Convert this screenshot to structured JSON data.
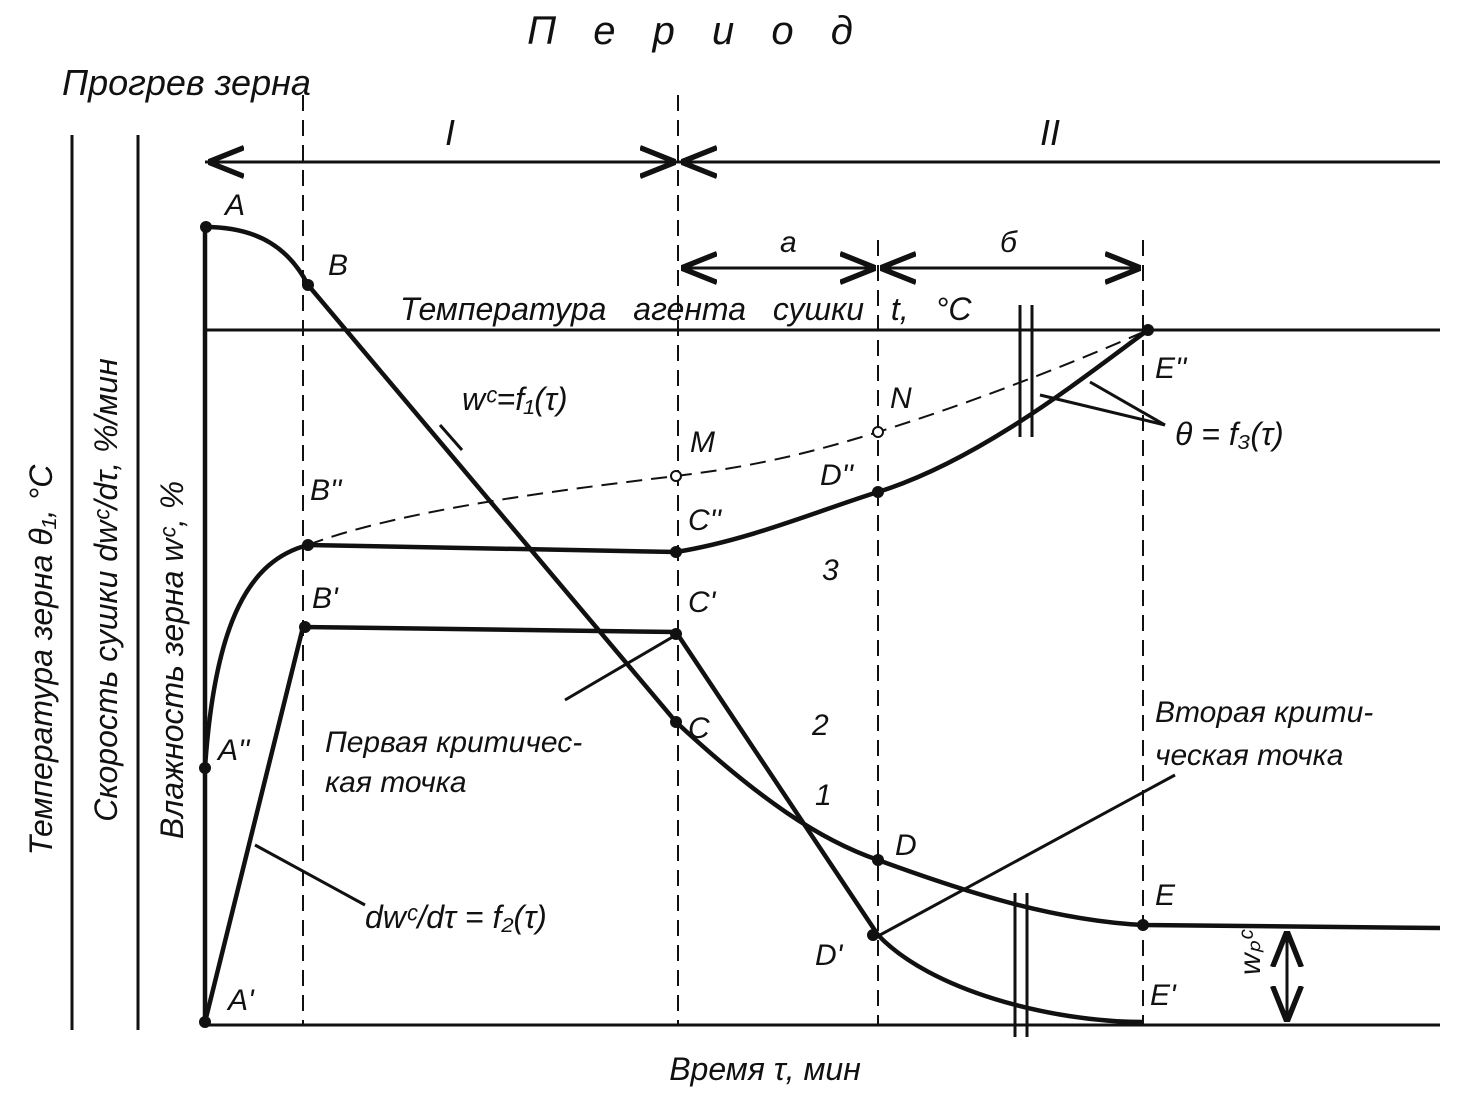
{
  "header": {
    "period": "П е р и о д",
    "heating": "Прогрев зерна"
  },
  "periods": {
    "first": "I",
    "second": "II",
    "a": "а",
    "b": "б"
  },
  "agent_temperature": "Температура агента сушки t, °C",
  "curves": {
    "moisture": "wᶜ=f₁(τ)",
    "rate": "dwᶜ/dτ = f₂(τ)",
    "temperature": "θ = f₃(τ)"
  },
  "points": [
    "A",
    "B",
    "A''",
    "B''",
    "C''",
    "D''",
    "E''",
    "M",
    "N",
    "A'",
    "B'",
    "C'",
    "C",
    "D",
    "D'",
    "E",
    "E'"
  ],
  "curve_numbers": [
    "1",
    "2",
    "3"
  ],
  "first_critical": [
    "Первая критичес-",
    "кая точка"
  ],
  "second_critical": [
    "Вторая крити-",
    "ческая точка"
  ],
  "equilibrium": "wₚᶜ",
  "axes": {
    "x": "Время τ, мин",
    "y": [
      "Температура зерна θ₁, °C",
      "Скорость сушки dwᶜ/dτ, %/мин",
      "Влажность зерна wᶜ, %"
    ]
  }
}
